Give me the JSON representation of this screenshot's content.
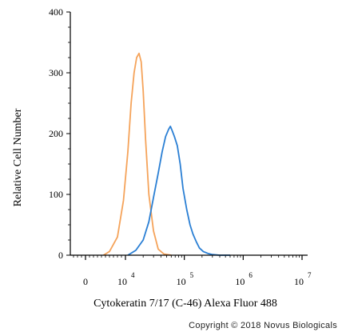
{
  "chart_data": {
    "type": "line",
    "xlabel": "Cytokeratin 7/17 (C-46) Alexa Fluor 488",
    "ylabel": "Relative Cell Number",
    "xscale": "biexponential",
    "ylim": [
      0,
      400
    ],
    "yticks": [
      "0",
      "100",
      "200",
      "300",
      "400"
    ],
    "xticks": [
      {
        "value": 0,
        "base": "0",
        "exp": ""
      },
      {
        "value": 10000,
        "base": "10",
        "exp": "4"
      },
      {
        "value": 100000,
        "base": "10",
        "exp": "5"
      },
      {
        "value": 1000000,
        "base": "10",
        "exp": "6"
      },
      {
        "value": 10000000,
        "base": "10",
        "exp": "7"
      }
    ],
    "series": [
      {
        "color": "#f5a35a",
        "x": [
          4500,
          6000,
          8000,
          9500,
          11000,
          12500,
          14000,
          15500,
          17000,
          18500,
          20000,
          22000,
          25000,
          30000,
          36000,
          45000,
          60000
        ],
        "y": [
          0,
          6,
          30,
          90,
          170,
          250,
          300,
          325,
          332,
          318,
          270,
          190,
          100,
          40,
          10,
          2,
          0
        ]
      },
      {
        "color": "#2a7fd4",
        "x": [
          11000,
          15000,
          20000,
          25000,
          30000,
          36000,
          42000,
          48000,
          54000,
          58000,
          62000,
          68000,
          76000,
          85000,
          95000,
          110000,
          125000,
          140000,
          160000,
          180000,
          210000,
          250000,
          300000,
          400000,
          600000
        ],
        "y": [
          0,
          8,
          25,
          55,
          95,
          135,
          170,
          195,
          207,
          212,
          205,
          195,
          180,
          150,
          110,
          75,
          50,
          35,
          22,
          12,
          6,
          3,
          1,
          0,
          0
        ]
      }
    ]
  },
  "footer": {
    "copyright": "Copyright © 2018 Novus Biologicals"
  }
}
